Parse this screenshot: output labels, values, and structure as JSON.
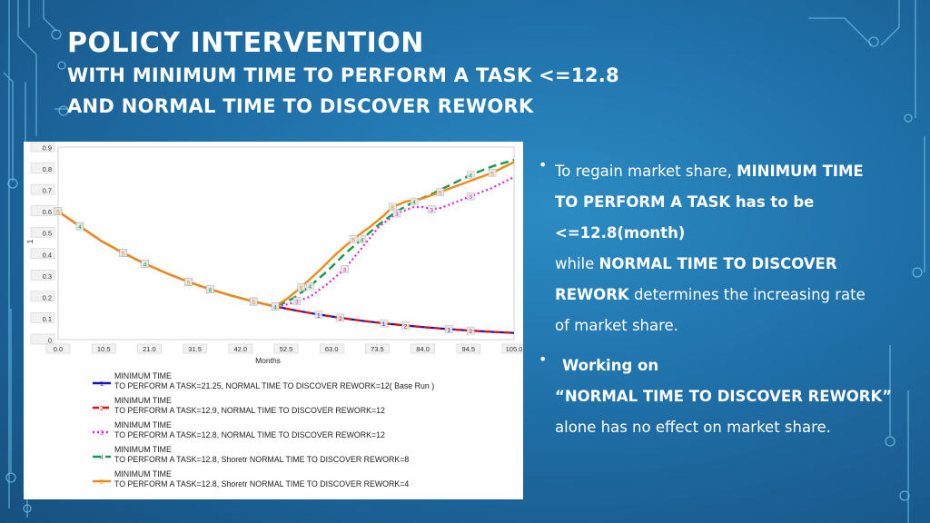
{
  "slide": {
    "title_line1": "POLICY INTERVENTION",
    "title_line2": "WITH MINIMUM TIME TO PERFORM A TASK <=12.8",
    "title_line3": "AND NORMAL TIME TO DISCOVER REWORK"
  },
  "bullets": {
    "b1_l1_a": "To regain market share, ",
    "b1_l1_b": "MINIMUM TIME",
    "b1_l2": "TO PERFORM A TASK has to be",
    "b1_l3": "<=12.8(month)",
    "b1_l4_a": "while ",
    "b1_l4_b": "NORMAL TIME TO DISCOVER",
    "b1_l5_a": "REWORK",
    "b1_l5_b": " determines the increasing rate",
    "b1_l6": "of market share.",
    "b2_l1": "Working on",
    "b2_l2": "“NORMAL TIME TO DISCOVER REWORK”",
    "b2_l3": "alone has no effect on market share.",
    "bullet_char": "•"
  },
  "colors": {
    "s1": "#1010c8",
    "s2": "#e01010",
    "s3": "#e020e0",
    "s4": "#149a50",
    "s5": "#f08a1a"
  },
  "chart_data": {
    "type": "line",
    "xlabel": "Months",
    "ylabel": "1",
    "xlim": [
      0,
      105
    ],
    "ylim": [
      0,
      0.9
    ],
    "xticks": [
      "0.0",
      "10.5",
      "21.0",
      "31.5",
      "42.0",
      "52.5",
      "63.0",
      "73.5",
      "84.0",
      "94.5",
      "105.0"
    ],
    "yticks": [
      "0",
      "0.1",
      "0.2",
      "0.3",
      "0.4",
      "0.5",
      "0.6",
      "0.7",
      "0.8",
      "0.9"
    ],
    "series": [
      {
        "id": "1",
        "name_l1": "MINIMUM TIME",
        "name_l2": "TO PERFORM A TASK=21.25, NORMAL TIME TO DISCOVER REWORK=12( Base Run )",
        "x": [
          0,
          5,
          10,
          15,
          20,
          25,
          30,
          35,
          40,
          45,
          50,
          55,
          60,
          65,
          70,
          75,
          80,
          85,
          90,
          95,
          100,
          105
        ],
        "y": [
          0.6,
          0.53,
          0.46,
          0.405,
          0.355,
          0.31,
          0.27,
          0.235,
          0.205,
          0.178,
          0.155,
          0.135,
          0.117,
          0.102,
          0.088,
          0.076,
          0.066,
          0.057,
          0.049,
          0.042,
          0.036,
          0.031
        ]
      },
      {
        "id": "2",
        "name_l1": "MINIMUM TIME",
        "name_l2": "TO PERFORM A TASK=12.9, NORMAL TIME TO DISCOVER REWORK=12",
        "x": [
          0,
          5,
          10,
          15,
          20,
          25,
          30,
          35,
          40,
          45,
          50,
          55,
          60,
          65,
          70,
          75,
          80,
          85,
          90,
          95,
          100,
          105
        ],
        "y": [
          0.6,
          0.53,
          0.46,
          0.405,
          0.355,
          0.31,
          0.27,
          0.235,
          0.205,
          0.178,
          0.155,
          0.135,
          0.117,
          0.102,
          0.088,
          0.076,
          0.066,
          0.057,
          0.049,
          0.042,
          0.036,
          0.031
        ]
      },
      {
        "id": "3",
        "name_l1": "MINIMUM TIME",
        "name_l2": "TO PERFORM A TASK=12.8, NORMAL TIME TO DISCOVER REWORK=12",
        "x": [
          0,
          5,
          10,
          15,
          20,
          25,
          30,
          35,
          40,
          45,
          50,
          53,
          55,
          58,
          62,
          66,
          70,
          74,
          78,
          82,
          84,
          86,
          88,
          90,
          95,
          100,
          105
        ],
        "y": [
          0.6,
          0.53,
          0.46,
          0.405,
          0.355,
          0.31,
          0.27,
          0.235,
          0.205,
          0.178,
          0.155,
          0.165,
          0.18,
          0.2,
          0.26,
          0.33,
          0.43,
          0.53,
          0.59,
          0.62,
          0.62,
          0.61,
          0.615,
          0.63,
          0.67,
          0.71,
          0.76
        ]
      },
      {
        "id": "4",
        "name_l1": "MINIMUM TIME",
        "name_l2": "TO PERFORM A TASK=12.8, Shoretr NORMAL TIME TO DISCOVER REWORK=8",
        "x": [
          0,
          5,
          10,
          15,
          20,
          25,
          30,
          35,
          40,
          45,
          50,
          53,
          55,
          58,
          62,
          66,
          70,
          74,
          78,
          82,
          86,
          90,
          95,
          100,
          105
        ],
        "y": [
          0.6,
          0.53,
          0.46,
          0.405,
          0.355,
          0.31,
          0.27,
          0.235,
          0.205,
          0.178,
          0.155,
          0.18,
          0.205,
          0.25,
          0.32,
          0.4,
          0.47,
          0.54,
          0.6,
          0.645,
          0.68,
          0.72,
          0.77,
          0.81,
          0.84
        ]
      },
      {
        "id": "5",
        "name_l1": "MINIMUM TIME",
        "name_l2": "TO PERFORM A TASK=12.8, Shoretr NORMAL TIME TO DISCOVER REWORK=4",
        "x": [
          0,
          5,
          10,
          15,
          20,
          25,
          30,
          35,
          40,
          45,
          50,
          53,
          56,
          60,
          64,
          68,
          72,
          75,
          77,
          80,
          84,
          88,
          92,
          96,
          100,
          105
        ],
        "y": [
          0.6,
          0.53,
          0.46,
          0.405,
          0.355,
          0.31,
          0.27,
          0.235,
          0.205,
          0.178,
          0.155,
          0.195,
          0.245,
          0.32,
          0.4,
          0.47,
          0.53,
          0.58,
          0.62,
          0.645,
          0.66,
          0.69,
          0.72,
          0.75,
          0.78,
          0.83
        ]
      }
    ]
  }
}
